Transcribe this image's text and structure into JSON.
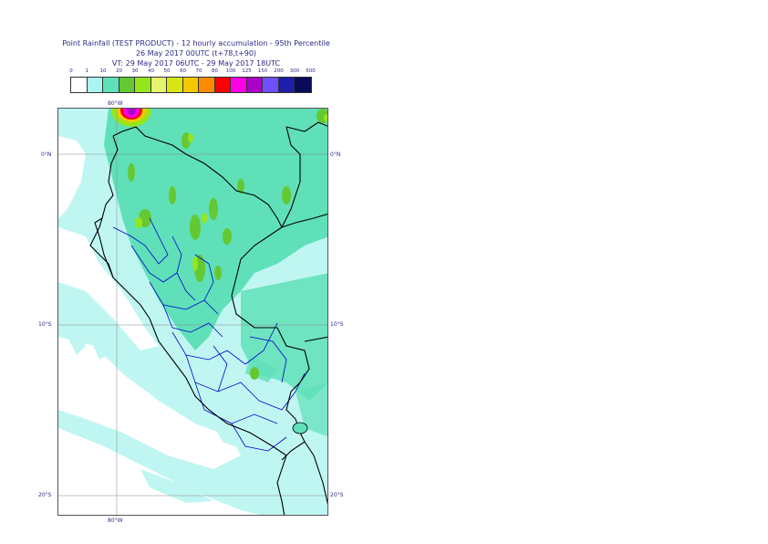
{
  "title": {
    "line1": "Point Rainfall (TEST PRODUCT) - 12 hourly accumulation - 95th Percentile",
    "line2": "26 May 2017 00UTC (t+78,t+90)",
    "line3": "VT: 29 May 2017 06UTC - 29 May 2017 18UTC"
  },
  "legend": {
    "labels": [
      "0",
      "1",
      "10",
      "20",
      "30",
      "40",
      "50",
      "60",
      "70",
      "80",
      "100",
      "125",
      "150",
      "200",
      "300",
      "500"
    ],
    "colors": [
      "#ffffff",
      "#aaf5f0",
      "#5fe0b8",
      "#64c832",
      "#96e61e",
      "#e6f56e",
      "#d7e614",
      "#f5c800",
      "#ff8c00",
      "#ff0000",
      "#ff00e6",
      "#aa00c8",
      "#6e50ff",
      "#1e1eaa",
      "#0a0a5a"
    ]
  },
  "axes": {
    "top_lon": "80°W",
    "bottom_lon": "80°W",
    "lat_0_left": "0°N",
    "lat_0_right": "0°N",
    "lat_10_left": "10°S",
    "lat_10_right": "10°S",
    "lat_20_left": "20°S",
    "lat_20_right": "20°S"
  },
  "map": {
    "region": "Peru",
    "colors": {
      "ocean_light": "#bff6f2",
      "dry": "#ffffff",
      "light_rain": "#aaf5f0",
      "moderate": "#5fe0b8",
      "heavy": "#64c832",
      "very_heavy": "#96e61e",
      "border_country": "#000000",
      "border_region": "#0000cc"
    }
  }
}
